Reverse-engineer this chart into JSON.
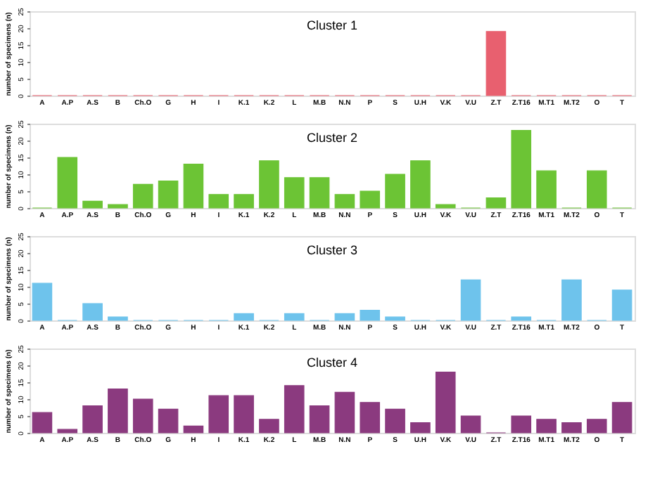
{
  "chart_data": [
    {
      "type": "bar",
      "title": "Cluster 1",
      "ylabel": "number of specimens (n)",
      "categories": [
        "A",
        "A.P",
        "A.S",
        "B",
        "Ch.O",
        "G",
        "H",
        "I",
        "K.1",
        "K.2",
        "L",
        "M.B",
        "N.N",
        "P",
        "S",
        "U.H",
        "V.K",
        "V.U",
        "Z.T",
        "Z.T16",
        "M.T1",
        "M.T2",
        "O",
        "T"
      ],
      "series": [
        {
          "color": "#e8606f",
          "values": [
            0,
            0,
            0,
            0,
            0,
            0,
            0,
            0,
            0,
            0,
            0,
            0,
            0,
            0,
            0,
            0,
            0,
            0,
            19,
            0,
            0,
            0,
            0,
            0
          ]
        }
      ],
      "ylim": [
        0,
        25
      ],
      "yticks": [
        0,
        5,
        10,
        15,
        20,
        25
      ],
      "grid": false
    },
    {
      "type": "bar",
      "title": "Cluster 2",
      "ylabel": "number of specimens (n)",
      "categories": [
        "A",
        "A.P",
        "A.S",
        "B",
        "Ch.O",
        "G",
        "H",
        "I",
        "K.1",
        "K.2",
        "L",
        "M.B",
        "N.N",
        "P",
        "S",
        "U.H",
        "V.K",
        "V.U",
        "Z.T",
        "Z.T16",
        "M.T1",
        "M.T2",
        "O",
        "T"
      ],
      "series": [
        {
          "color": "#6cc435",
          "values": [
            0,
            15,
            2,
            1,
            7,
            8,
            13,
            4,
            4,
            14,
            9,
            9,
            4,
            5,
            10,
            14,
            1,
            0,
            3,
            23,
            11,
            0,
            11,
            0
          ]
        }
      ],
      "ylim": [
        0,
        25
      ],
      "yticks": [
        0,
        5,
        10,
        15,
        20,
        25
      ],
      "grid": false
    },
    {
      "type": "bar",
      "title": "Cluster 3",
      "ylabel": "number of specimens (n)",
      "categories": [
        "A",
        "A.P",
        "A.S",
        "B",
        "Ch.O",
        "G",
        "H",
        "I",
        "K.1",
        "K.2",
        "L",
        "M.B",
        "N.N",
        "P",
        "S",
        "U.H",
        "V.K",
        "V.U",
        "Z.T",
        "Z.T16",
        "M.T1",
        "M.T2",
        "O",
        "T"
      ],
      "series": [
        {
          "color": "#6ec3ec",
          "values": [
            11,
            0,
            5,
            1,
            0,
            0,
            0,
            0,
            2,
            0,
            2,
            0,
            2,
            3,
            1,
            0,
            0,
            12,
            0,
            1,
            0,
            12,
            0,
            9
          ]
        }
      ],
      "ylim": [
        0,
        25
      ],
      "yticks": [
        0,
        5,
        10,
        15,
        20,
        25
      ],
      "grid": false
    },
    {
      "type": "bar",
      "title": "Cluster 4",
      "ylabel": "number of specimens (n)",
      "categories": [
        "A",
        "A.P",
        "A.S",
        "B",
        "Ch.O",
        "G",
        "H",
        "I",
        "K.1",
        "K.2",
        "L",
        "M.B",
        "N.N",
        "P",
        "S",
        "U.H",
        "V.K",
        "V.U",
        "Z.T",
        "Z.T16",
        "M.T1",
        "M.T2",
        "O",
        "T"
      ],
      "series": [
        {
          "color": "#8b3a7f",
          "values": [
            6,
            1,
            8,
            13,
            10,
            7,
            2,
            11,
            11,
            4,
            14,
            8,
            12,
            9,
            7,
            3,
            18,
            5,
            0,
            5,
            4,
            3,
            4,
            9
          ]
        }
      ],
      "ylim": [
        0,
        25
      ],
      "yticks": [
        0,
        5,
        10,
        15,
        20,
        25
      ],
      "grid": false
    }
  ]
}
